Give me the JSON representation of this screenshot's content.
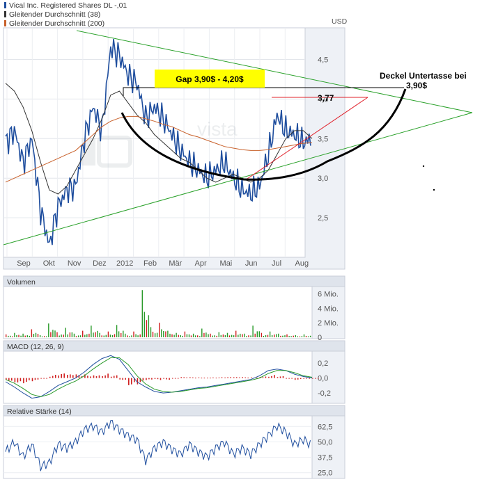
{
  "legend": [
    {
      "label": "Vical Inc. Registered Shares DL -,01",
      "color": "#1f4e9e"
    },
    {
      "label": "Gleitender Durchschnitt (38)",
      "color": "#333333"
    },
    {
      "label": "Gleitender Durchschnitt (200)",
      "color": "#c8602a"
    }
  ],
  "currency": "USD",
  "watermark": "vista",
  "annotations": {
    "gap": "Gap 3,90$ - 4,20$",
    "resistance": "3,77",
    "deckel_line1": "Deckel Untertasse bei",
    "deckel_line2": "3,90$"
  },
  "chart_data": [
    {
      "type": "line",
      "title": "",
      "x_labels": [
        "Sep",
        "Okt",
        "Nov",
        "Dez",
        "2012",
        "Feb",
        "Mär",
        "Apr",
        "Mai",
        "Jun",
        "Jul",
        "Aug"
      ],
      "y_ticks": [
        "4,5",
        "4,0",
        "3,5",
        "3,0",
        "2,5"
      ],
      "y_tick_values": [
        4.5,
        4.0,
        3.5,
        3.0,
        2.5
      ],
      "ylim": [
        2.0,
        4.9
      ],
      "grid": true,
      "series": [
        {
          "name": "Vical Inc. Registered Shares DL -,01",
          "values": [
            3.45,
            3.6,
            3.2,
            3.5,
            2.6,
            2.15,
            2.65,
            2.85,
            2.9,
            3.5,
            3.9,
            3.6,
            4.65,
            4.55,
            4.3,
            4.2,
            3.75,
            3.9,
            3.75,
            3.55,
            3.35,
            3.2,
            3.1,
            3.0,
            3.1,
            3.2,
            3.0,
            2.85,
            2.8,
            2.9,
            3.3,
            3.8,
            3.6,
            3.55,
            3.45,
            3.5
          ]
        },
        {
          "name": "Gleitender Durchschnitt (38)",
          "values": [
            4.2,
            4.1,
            3.9,
            3.6,
            3.2,
            2.85,
            2.8,
            2.9,
            3.1,
            3.3,
            3.5,
            3.75,
            4.05,
            4.1,
            3.95,
            3.8,
            3.7,
            3.55,
            3.45,
            3.35,
            3.25,
            3.2,
            3.1,
            3.0,
            2.95,
            3.0,
            3.05,
            3.0,
            2.95,
            3.0,
            3.1,
            3.3,
            3.5,
            3.6,
            3.6,
            3.5
          ]
        },
        {
          "name": "Gleitender Durchschnitt (200)",
          "values": [
            2.95,
            3.0,
            3.05,
            3.1,
            3.15,
            3.2,
            3.25,
            3.3,
            3.35,
            3.45,
            3.55,
            3.65,
            3.72,
            3.76,
            3.78,
            3.78,
            3.75,
            3.72,
            3.68,
            3.65,
            3.6,
            3.55,
            3.52,
            3.48,
            3.44,
            3.4,
            3.38,
            3.36,
            3.35,
            3.35,
            3.36,
            3.38,
            3.4,
            3.42,
            3.44,
            3.45
          ]
        }
      ]
    },
    {
      "type": "bar",
      "title": "Volumen",
      "y_ticks": [
        "6 Mio.",
        "4 Mio.",
        "2 Mio.",
        "0"
      ],
      "y_tick_values": [
        6,
        4,
        2,
        0
      ],
      "ylim": [
        0,
        7
      ],
      "values_mio": [
        0.4,
        0.6,
        0.5,
        1.1,
        0.3,
        1.9,
        0.7,
        1.3,
        0.5,
        0.9,
        1.6,
        0.6,
        0.8,
        1.7,
        0.5,
        0.8,
        6.5,
        1.4,
        2.0,
        0.9,
        0.6,
        0.8,
        0.5,
        1.2,
        0.5,
        0.7,
        0.6,
        0.9,
        0.5,
        1.6,
        0.6,
        0.8,
        0.5,
        0.4,
        0.3,
        0.4
      ]
    },
    {
      "type": "line",
      "title": "MACD (12, 26, 9)",
      "y_ticks": [
        "0,2",
        "0,0",
        "-0,2"
      ],
      "y_tick_values": [
        0.2,
        0.0,
        -0.2
      ],
      "ylim": [
        -0.32,
        0.34
      ],
      "series": [
        {
          "name": "MACD",
          "values": [
            -0.05,
            -0.12,
            -0.2,
            -0.27,
            -0.25,
            -0.18,
            -0.1,
            -0.05,
            0.0,
            0.08,
            0.18,
            0.26,
            0.3,
            0.25,
            0.1,
            -0.05,
            -0.12,
            -0.18,
            -0.2,
            -0.19,
            -0.17,
            -0.15,
            -0.13,
            -0.12,
            -0.1,
            -0.08,
            -0.06,
            -0.04,
            -0.02,
            0.03,
            0.1,
            0.12,
            0.1,
            0.05,
            0.02,
            0.0
          ]
        },
        {
          "name": "Signal",
          "values": [
            -0.02,
            -0.07,
            -0.14,
            -0.22,
            -0.25,
            -0.22,
            -0.15,
            -0.09,
            -0.04,
            0.03,
            0.12,
            0.2,
            0.27,
            0.27,
            0.18,
            0.03,
            -0.08,
            -0.15,
            -0.18,
            -0.19,
            -0.18,
            -0.16,
            -0.14,
            -0.13,
            -0.11,
            -0.09,
            -0.07,
            -0.05,
            -0.03,
            0.0,
            0.06,
            0.1,
            0.1,
            0.07,
            0.03,
            0.01
          ]
        }
      ]
    },
    {
      "type": "line",
      "title": "Relative Stärke (14)",
      "y_ticks": [
        "62,5",
        "50,0",
        "37,5",
        "25,0"
      ],
      "y_tick_values": [
        62.5,
        50,
        37.5,
        25
      ],
      "ylim": [
        22,
        70
      ],
      "series": [
        {
          "name": "RSI",
          "values": [
            42,
            50,
            38,
            48,
            30,
            33,
            48,
            45,
            50,
            60,
            63,
            58,
            66,
            60,
            55,
            52,
            35,
            45,
            50,
            44,
            40,
            48,
            42,
            38,
            45,
            50,
            40,
            45,
            40,
            48,
            55,
            63,
            58,
            48,
            52,
            47
          ]
        }
      ]
    }
  ]
}
